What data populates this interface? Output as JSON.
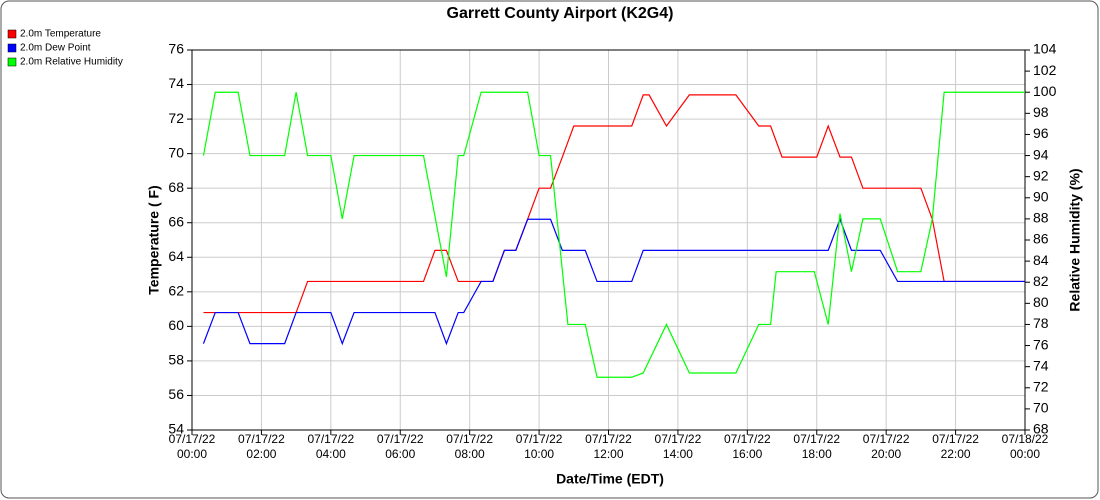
{
  "chart_data": {
    "type": "line",
    "title": "Garrett County Airport (K2G4)",
    "x_label": "Date/Time (EDT)",
    "y_label": "Temperature ( F)",
    "y2_label": "Relative Humidity (%)",
    "legend": "top-left",
    "grid": true,
    "xlim": [
      0,
      24
    ],
    "xticks": [
      {
        "value": 0,
        "label": "07/17/22\n00:00"
      },
      {
        "value": 2,
        "label": "07/17/22\n02:00"
      },
      {
        "value": 4,
        "label": "07/17/22\n04:00"
      },
      {
        "value": 6,
        "label": "07/17/22\n06:00"
      },
      {
        "value": 8,
        "label": "07/17/22\n08:00"
      },
      {
        "value": 10,
        "label": "07/17/22\n10:00"
      },
      {
        "value": 12,
        "label": "07/17/22\n12:00"
      },
      {
        "value": 14,
        "label": "07/17/22\n14:00"
      },
      {
        "value": 16,
        "label": "07/17/22\n16:00"
      },
      {
        "value": 18,
        "label": "07/17/22\n18:00"
      },
      {
        "value": 20,
        "label": "07/17/22\n20:00"
      },
      {
        "value": 22,
        "label": "07/17/22\n22:00"
      },
      {
        "value": 24,
        "label": "07/18/22\n00:00"
      }
    ],
    "ylim": [
      54,
      76
    ],
    "yticks": [
      54,
      56,
      58,
      60,
      62,
      64,
      66,
      68,
      70,
      72,
      74,
      76
    ],
    "y2lim": [
      68,
      104
    ],
    "y2ticks": [
      68,
      70,
      72,
      74,
      76,
      78,
      80,
      82,
      84,
      86,
      88,
      90,
      92,
      94,
      96,
      98,
      100,
      102,
      104
    ],
    "series": [
      {
        "name": "2.0m Temperature",
        "color": "#ff0000",
        "x": [
          0.33,
          0.67,
          3,
          3.33,
          6.67,
          7,
          7.33,
          7.67,
          8.67,
          9,
          9.33,
          9.67,
          10,
          10.33,
          10.67,
          11,
          12.67,
          13,
          13.17,
          13.67,
          14.33,
          15.67,
          16.33,
          16.67,
          17,
          18,
          18.33,
          18.67,
          19,
          19.33,
          21,
          21.33,
          21.67,
          24
        ],
        "values": [
          60.8,
          60.8,
          60.8,
          62.6,
          62.6,
          64.4,
          64.4,
          62.6,
          62.6,
          64.4,
          64.4,
          66.2,
          68,
          68,
          69.8,
          71.6,
          71.6,
          73.4,
          73.4,
          71.6,
          73.4,
          73.4,
          71.6,
          71.6,
          69.8,
          69.8,
          71.6,
          69.8,
          69.8,
          68,
          68,
          66.2,
          62.6,
          62.6
        ]
      },
      {
        "name": "2.0m Dew Point",
        "color": "#0000ff",
        "x": [
          0.33,
          0.67,
          1.33,
          1.67,
          2.67,
          3,
          4,
          4.33,
          4.67,
          7,
          7.33,
          7.67,
          7.83,
          8.33,
          8.67,
          9,
          9.33,
          9.67,
          10.33,
          10.67,
          11.33,
          11.67,
          12.67,
          13,
          18.33,
          18.67,
          19,
          19.83,
          20.33,
          24
        ],
        "values": [
          59,
          60.8,
          60.8,
          59,
          59,
          60.8,
          60.8,
          59,
          60.8,
          60.8,
          59,
          60.8,
          60.8,
          62.6,
          62.6,
          64.4,
          64.4,
          66.2,
          66.2,
          64.4,
          64.4,
          62.6,
          62.6,
          64.4,
          64.4,
          66.2,
          64.4,
          64.4,
          62.6,
          62.6
        ]
      },
      {
        "name": "2.0m Relative Humidity",
        "color": "#00ff00",
        "axis": "y2",
        "x": [
          0.33,
          0.67,
          1.33,
          1.67,
          2.67,
          3,
          3.33,
          4,
          4.33,
          4.67,
          6.67,
          7.33,
          7.67,
          7.83,
          8.33,
          9.67,
          10,
          10.33,
          10.83,
          11.33,
          11.67,
          12.67,
          13,
          13.67,
          14.33,
          15.67,
          16.33,
          16.67,
          16.83,
          17.93,
          18.33,
          18.67,
          19,
          19.33,
          19.83,
          20.33,
          21,
          21.33,
          21.67,
          24
        ],
        "values": [
          94,
          100,
          100,
          94,
          94,
          100,
          94,
          94,
          88,
          94,
          94,
          82.5,
          94,
          94,
          100,
          100,
          94,
          94,
          78,
          78,
          73,
          73,
          73.4,
          78,
          73.4,
          73.4,
          78,
          78,
          83,
          83,
          78,
          88.5,
          83,
          88,
          88,
          83,
          83,
          88,
          100,
          100
        ]
      }
    ]
  }
}
